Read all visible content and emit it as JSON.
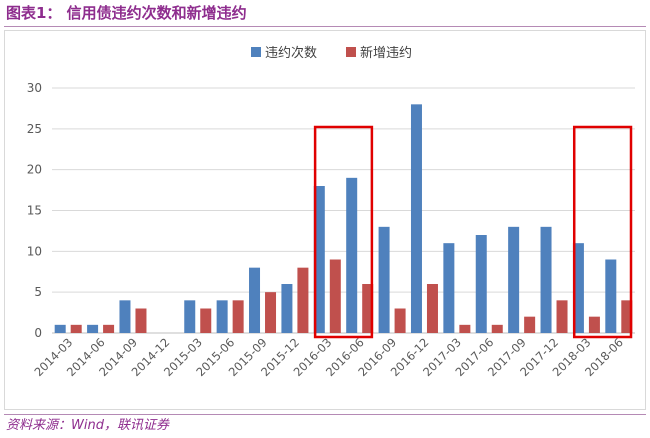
{
  "figure": {
    "title": "图表1：   信用债违约次数和新增违约",
    "source": "资料来源：Wind，联讯证券"
  },
  "colors": {
    "series_0": "#4f81bd",
    "series_1": "#c0504d",
    "highlight_box": "#e00000",
    "title": "#8e2d8e"
  },
  "chart_data": {
    "type": "bar",
    "title": "",
    "xlabel": "",
    "ylabel": "",
    "ylim": [
      0,
      30
    ],
    "yticks": [
      0,
      5,
      10,
      15,
      20,
      25,
      30
    ],
    "grid": true,
    "legend_position": "top",
    "categories": [
      "2014-03",
      "2014-06",
      "2014-09",
      "2014-12",
      "2015-03",
      "2015-06",
      "2015-09",
      "2015-12",
      "2016-03",
      "2016-06",
      "2016-09",
      "2016-12",
      "2017-03",
      "2017-06",
      "2017-09",
      "2017-12",
      "2018-03",
      "2018-06"
    ],
    "series": [
      {
        "name": "违约次数",
        "values": [
          1,
          1,
          4,
          0,
          4,
          4,
          8,
          6,
          18,
          19,
          13,
          28,
          11,
          12,
          13,
          13,
          11,
          9
        ]
      },
      {
        "name": "新增违约",
        "values": [
          1,
          1,
          3,
          0,
          3,
          4,
          5,
          8,
          9,
          6,
          3,
          6,
          1,
          1,
          2,
          4,
          2,
          4
        ]
      }
    ],
    "highlights": [
      {
        "from": "2016-03",
        "to": "2016-06"
      },
      {
        "from": "2018-03",
        "to": "2018-06"
      }
    ]
  }
}
